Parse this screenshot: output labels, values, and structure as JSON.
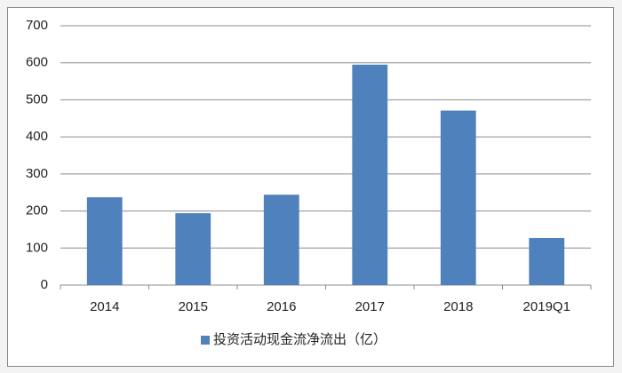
{
  "chart_data": {
    "type": "bar",
    "categories": [
      "2014",
      "2015",
      "2016",
      "2017",
      "2018",
      "2019Q1"
    ],
    "series": [
      {
        "name": "投资活动现金流净流出（亿）",
        "color": "#4f81bd",
        "values": [
          237,
          194,
          244,
          595,
          471,
          127
        ]
      }
    ],
    "ylim": [
      0,
      700
    ],
    "yticks": [
      0,
      100,
      200,
      300,
      400,
      500,
      600,
      700
    ],
    "grid": true,
    "legend": "bottom"
  }
}
